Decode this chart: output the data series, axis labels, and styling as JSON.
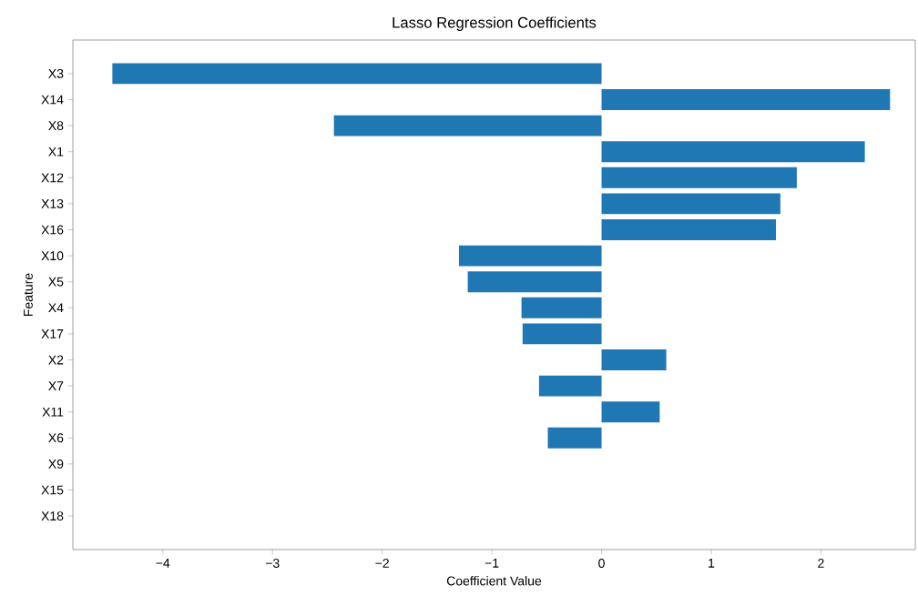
{
  "chart_data": {
    "type": "bar",
    "orientation": "horizontal",
    "title": "Lasso Regression Coefficients",
    "xlabel": "Coefficient Value",
    "ylabel": "Feature",
    "categories": [
      "X3",
      "X14",
      "X8",
      "X1",
      "X12",
      "X13",
      "X16",
      "X10",
      "X5",
      "X4",
      "X17",
      "X2",
      "X7",
      "X11",
      "X6",
      "X9",
      "X15",
      "X18"
    ],
    "values": [
      -4.46,
      2.63,
      -2.44,
      2.4,
      1.78,
      1.63,
      1.59,
      -1.3,
      -1.22,
      -0.73,
      -0.72,
      0.59,
      -0.57,
      0.53,
      -0.49,
      0,
      0,
      0
    ],
    "color": "#1f77b4",
    "xlim": [
      -4.82,
      2.86
    ],
    "xticks": [
      {
        "value": -4,
        "label": "−4"
      },
      {
        "value": -3,
        "label": "−3"
      },
      {
        "value": -2,
        "label": "−2"
      },
      {
        "value": -1,
        "label": "−1"
      },
      0,
      1,
      2
    ],
    "grid": false
  }
}
